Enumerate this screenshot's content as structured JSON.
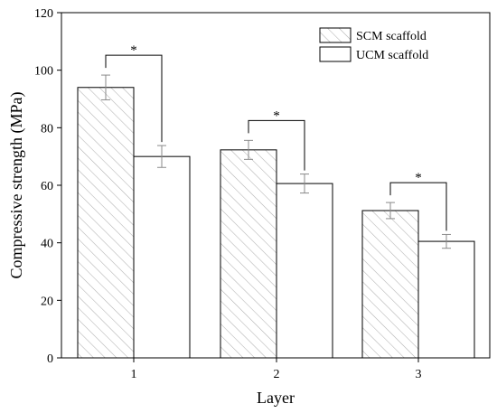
{
  "chart_data": {
    "type": "bar",
    "xlabel": "Layer",
    "ylabel": "Compressive strength (MPa)",
    "ylim": [
      0,
      120
    ],
    "yticks": [
      0,
      20,
      40,
      60,
      80,
      100,
      120
    ],
    "categories": [
      "1",
      "2",
      "3"
    ],
    "series": [
      {
        "name": "SCM scaffold",
        "values": [
          94,
          72.3,
          51.2
        ],
        "errors": [
          4.3,
          3.3,
          2.8
        ],
        "pattern": "diagonal-hatch",
        "color": "#b0b0b0"
      },
      {
        "name": "UCM scaffold",
        "values": [
          70,
          60.6,
          40.5
        ],
        "errors": [
          3.8,
          3.3,
          2.4
        ],
        "pattern": "none",
        "color": "#ffffff"
      }
    ],
    "significance": [
      {
        "category": "1",
        "label": "*"
      },
      {
        "category": "2",
        "label": "*"
      },
      {
        "category": "3",
        "label": "*"
      }
    ],
    "legend": {
      "position": "top-right",
      "frame": false
    },
    "grid": false
  }
}
